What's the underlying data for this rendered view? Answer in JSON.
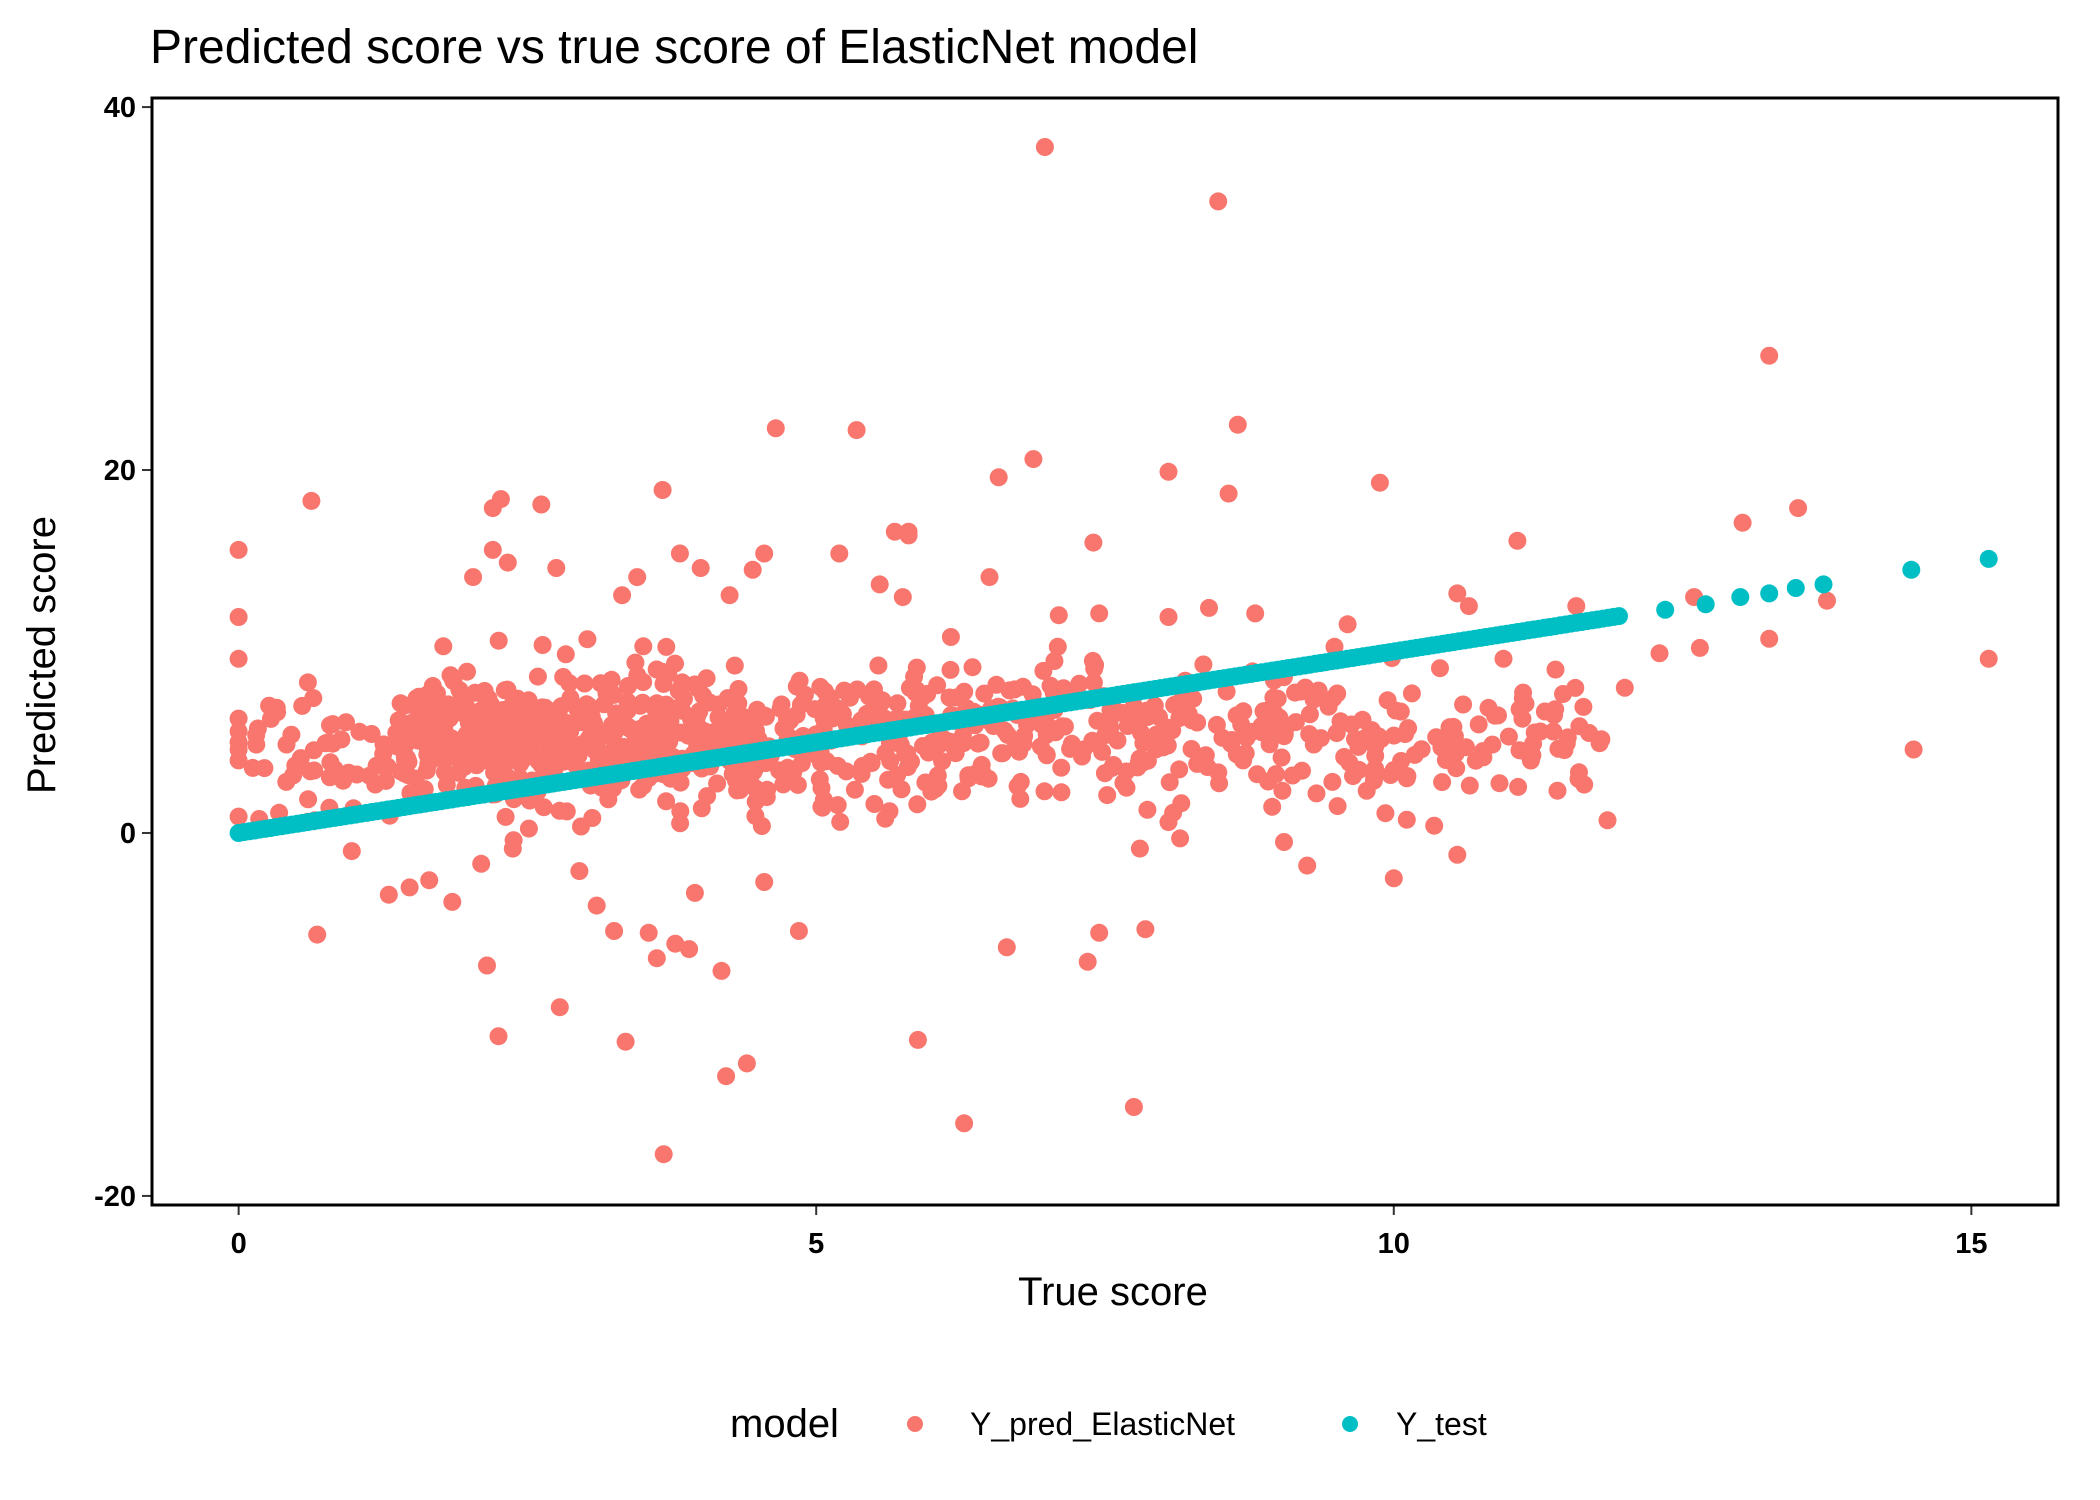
{
  "chart_data": {
    "type": "scatter",
    "title": "Predicted score vs true score of ElasticNet model",
    "xlabel": "True score",
    "ylabel": "Predicted score",
    "xlim": [
      -0.75,
      15.75
    ],
    "ylim": [
      -20.5,
      40.5
    ],
    "x_ticks": [
      0,
      5,
      10,
      15
    ],
    "x_tick_labels": [
      "0",
      "5",
      "10",
      "15"
    ],
    "y_ticks": [
      -20,
      0,
      20,
      40
    ],
    "y_tick_labels": [
      "-20",
      "0",
      "20",
      "40"
    ],
    "grid": false,
    "legend": {
      "title": "model",
      "position": "bottom",
      "entries": [
        "Y_pred_ElasticNet",
        "Y_test"
      ]
    },
    "series": [
      {
        "name": "Y_pred_ElasticNet",
        "color": "#F8766D",
        "points": [
          [
            6.98,
            37.8
          ],
          [
            8.48,
            34.8
          ],
          [
            13.25,
            26.3
          ],
          [
            4.65,
            22.3
          ],
          [
            5.35,
            22.2
          ],
          [
            8.65,
            22.5
          ],
          [
            6.88,
            20.6
          ],
          [
            6.58,
            19.6
          ],
          [
            8.05,
            19.9
          ],
          [
            9.88,
            19.3
          ],
          [
            3.67,
            18.9
          ],
          [
            8.57,
            18.7
          ],
          [
            0.63,
            18.3
          ],
          [
            2.27,
            18.4
          ],
          [
            2.2,
            17.9
          ],
          [
            2.62,
            18.1
          ],
          [
            13.5,
            17.9
          ],
          [
            13.02,
            17.1
          ],
          [
            5.68,
            16.6
          ],
          [
            5.8,
            16.4
          ],
          [
            5.8,
            16.6
          ],
          [
            7.4,
            16.0
          ],
          [
            11.07,
            16.1
          ],
          [
            0.0,
            15.6
          ],
          [
            2.2,
            15.6
          ],
          [
            3.82,
            15.4
          ],
          [
            4.55,
            15.4
          ],
          [
            5.2,
            15.4
          ],
          [
            2.33,
            14.9
          ],
          [
            2.75,
            14.6
          ],
          [
            4.0,
            14.6
          ],
          [
            4.45,
            14.5
          ],
          [
            2.03,
            14.1
          ],
          [
            3.45,
            14.1
          ],
          [
            5.55,
            13.7
          ],
          [
            6.5,
            14.1
          ],
          [
            3.32,
            13.1
          ],
          [
            4.25,
            13.1
          ],
          [
            5.75,
            13.0
          ],
          [
            10.55,
            13.2
          ],
          [
            0.0,
            11.9
          ],
          [
            7.1,
            12.0
          ],
          [
            7.45,
            12.1
          ],
          [
            8.05,
            11.9
          ],
          [
            8.4,
            12.4
          ],
          [
            8.8,
            12.1
          ],
          [
            9.6,
            11.5
          ],
          [
            10.65,
            12.5
          ],
          [
            11.58,
            12.5
          ],
          [
            12.6,
            13.0
          ],
          [
            13.25,
            10.7
          ],
          [
            13.75,
            12.8
          ],
          [
            0.0,
            9.6
          ],
          [
            0.0,
            6.3
          ],
          [
            0.0,
            5.6
          ],
          [
            0.0,
            5.0
          ],
          [
            0.0,
            4.6
          ],
          [
            0.0,
            4.0
          ],
          [
            0.0,
            0.9
          ],
          [
            0.33,
            6.9
          ],
          [
            0.55,
            7.0
          ],
          [
            0.6,
            8.3
          ],
          [
            0.78,
            5.0
          ],
          [
            0.62,
            3.4
          ],
          [
            0.66,
            0.7
          ],
          [
            0.68,
            -5.6
          ],
          [
            0.98,
            -1.0
          ],
          [
            1.3,
            -3.4
          ],
          [
            1.48,
            -3.0
          ],
          [
            1.65,
            -2.6
          ],
          [
            1.85,
            -3.8
          ],
          [
            2.1,
            -1.7
          ],
          [
            2.15,
            -7.3
          ],
          [
            2.25,
            -11.2
          ],
          [
            2.38,
            -0.4
          ],
          [
            2.5,
            4.2
          ],
          [
            2.78,
            -9.6
          ],
          [
            2.95,
            -2.1
          ],
          [
            3.1,
            -4.0
          ],
          [
            3.25,
            -5.4
          ],
          [
            3.35,
            -11.5
          ],
          [
            3.55,
            -5.5
          ],
          [
            3.62,
            -6.9
          ],
          [
            3.68,
            -17.7
          ],
          [
            3.78,
            -6.1
          ],
          [
            3.9,
            -6.4
          ],
          [
            3.95,
            -3.3
          ],
          [
            4.18,
            -7.6
          ],
          [
            4.22,
            -13.4
          ],
          [
            4.4,
            -12.7
          ],
          [
            4.55,
            -2.7
          ],
          [
            4.85,
            -5.4
          ],
          [
            5.88,
            -11.4
          ],
          [
            6.28,
            -16.0
          ],
          [
            6.65,
            -6.3
          ],
          [
            7.35,
            -7.1
          ],
          [
            7.45,
            -5.5
          ],
          [
            7.75,
            -15.1
          ],
          [
            7.85,
            -5.3
          ],
          [
            8.05,
            0.6
          ],
          [
            8.15,
            -0.3
          ],
          [
            9.05,
            -0.5
          ],
          [
            9.25,
            -1.8
          ],
          [
            10.0,
            -2.5
          ],
          [
            10.35,
            0.4
          ],
          [
            10.55,
            -1.2
          ],
          [
            11.85,
            0.7
          ],
          [
            12.3,
            9.9
          ],
          [
            12.65,
            10.2
          ],
          [
            14.5,
            4.6
          ],
          [
            15.15,
            9.6
          ],
          [
            12.0,
            8.0
          ],
          [
            11.4,
            9.0
          ],
          [
            10.95,
            9.6
          ]
        ],
        "cloud_regions": [
          {
            "x_range": [
              0.1,
              1.4
            ],
            "y_center": 4.5,
            "y_spread": 2.5,
            "count": 50
          },
          {
            "x_range": [
              1.4,
              4.5
            ],
            "y_center": 5.3,
            "y_spread": 2.8,
            "count": 420
          },
          {
            "x_range": [
              4.5,
              7.0
            ],
            "y_center": 5.3,
            "y_spread": 3.0,
            "count": 210
          },
          {
            "x_range": [
              7.0,
              10.0
            ],
            "y_center": 5.3,
            "y_spread": 2.8,
            "count": 180
          },
          {
            "x_range": [
              10.0,
              11.8
            ],
            "y_center": 5.6,
            "y_spread": 2.6,
            "count": 70
          }
        ]
      },
      {
        "name": "Y_test",
        "color": "#00BFC4",
        "line_range": [
          0.0,
          11.95
        ],
        "line_points": 260,
        "points": [
          [
            12.35,
            12.3
          ],
          [
            12.7,
            12.6
          ],
          [
            13.0,
            13.0
          ],
          [
            13.25,
            13.2
          ],
          [
            13.48,
            13.5
          ],
          [
            13.72,
            13.7
          ],
          [
            14.48,
            14.5
          ],
          [
            15.15,
            15.1
          ]
        ]
      }
    ]
  }
}
